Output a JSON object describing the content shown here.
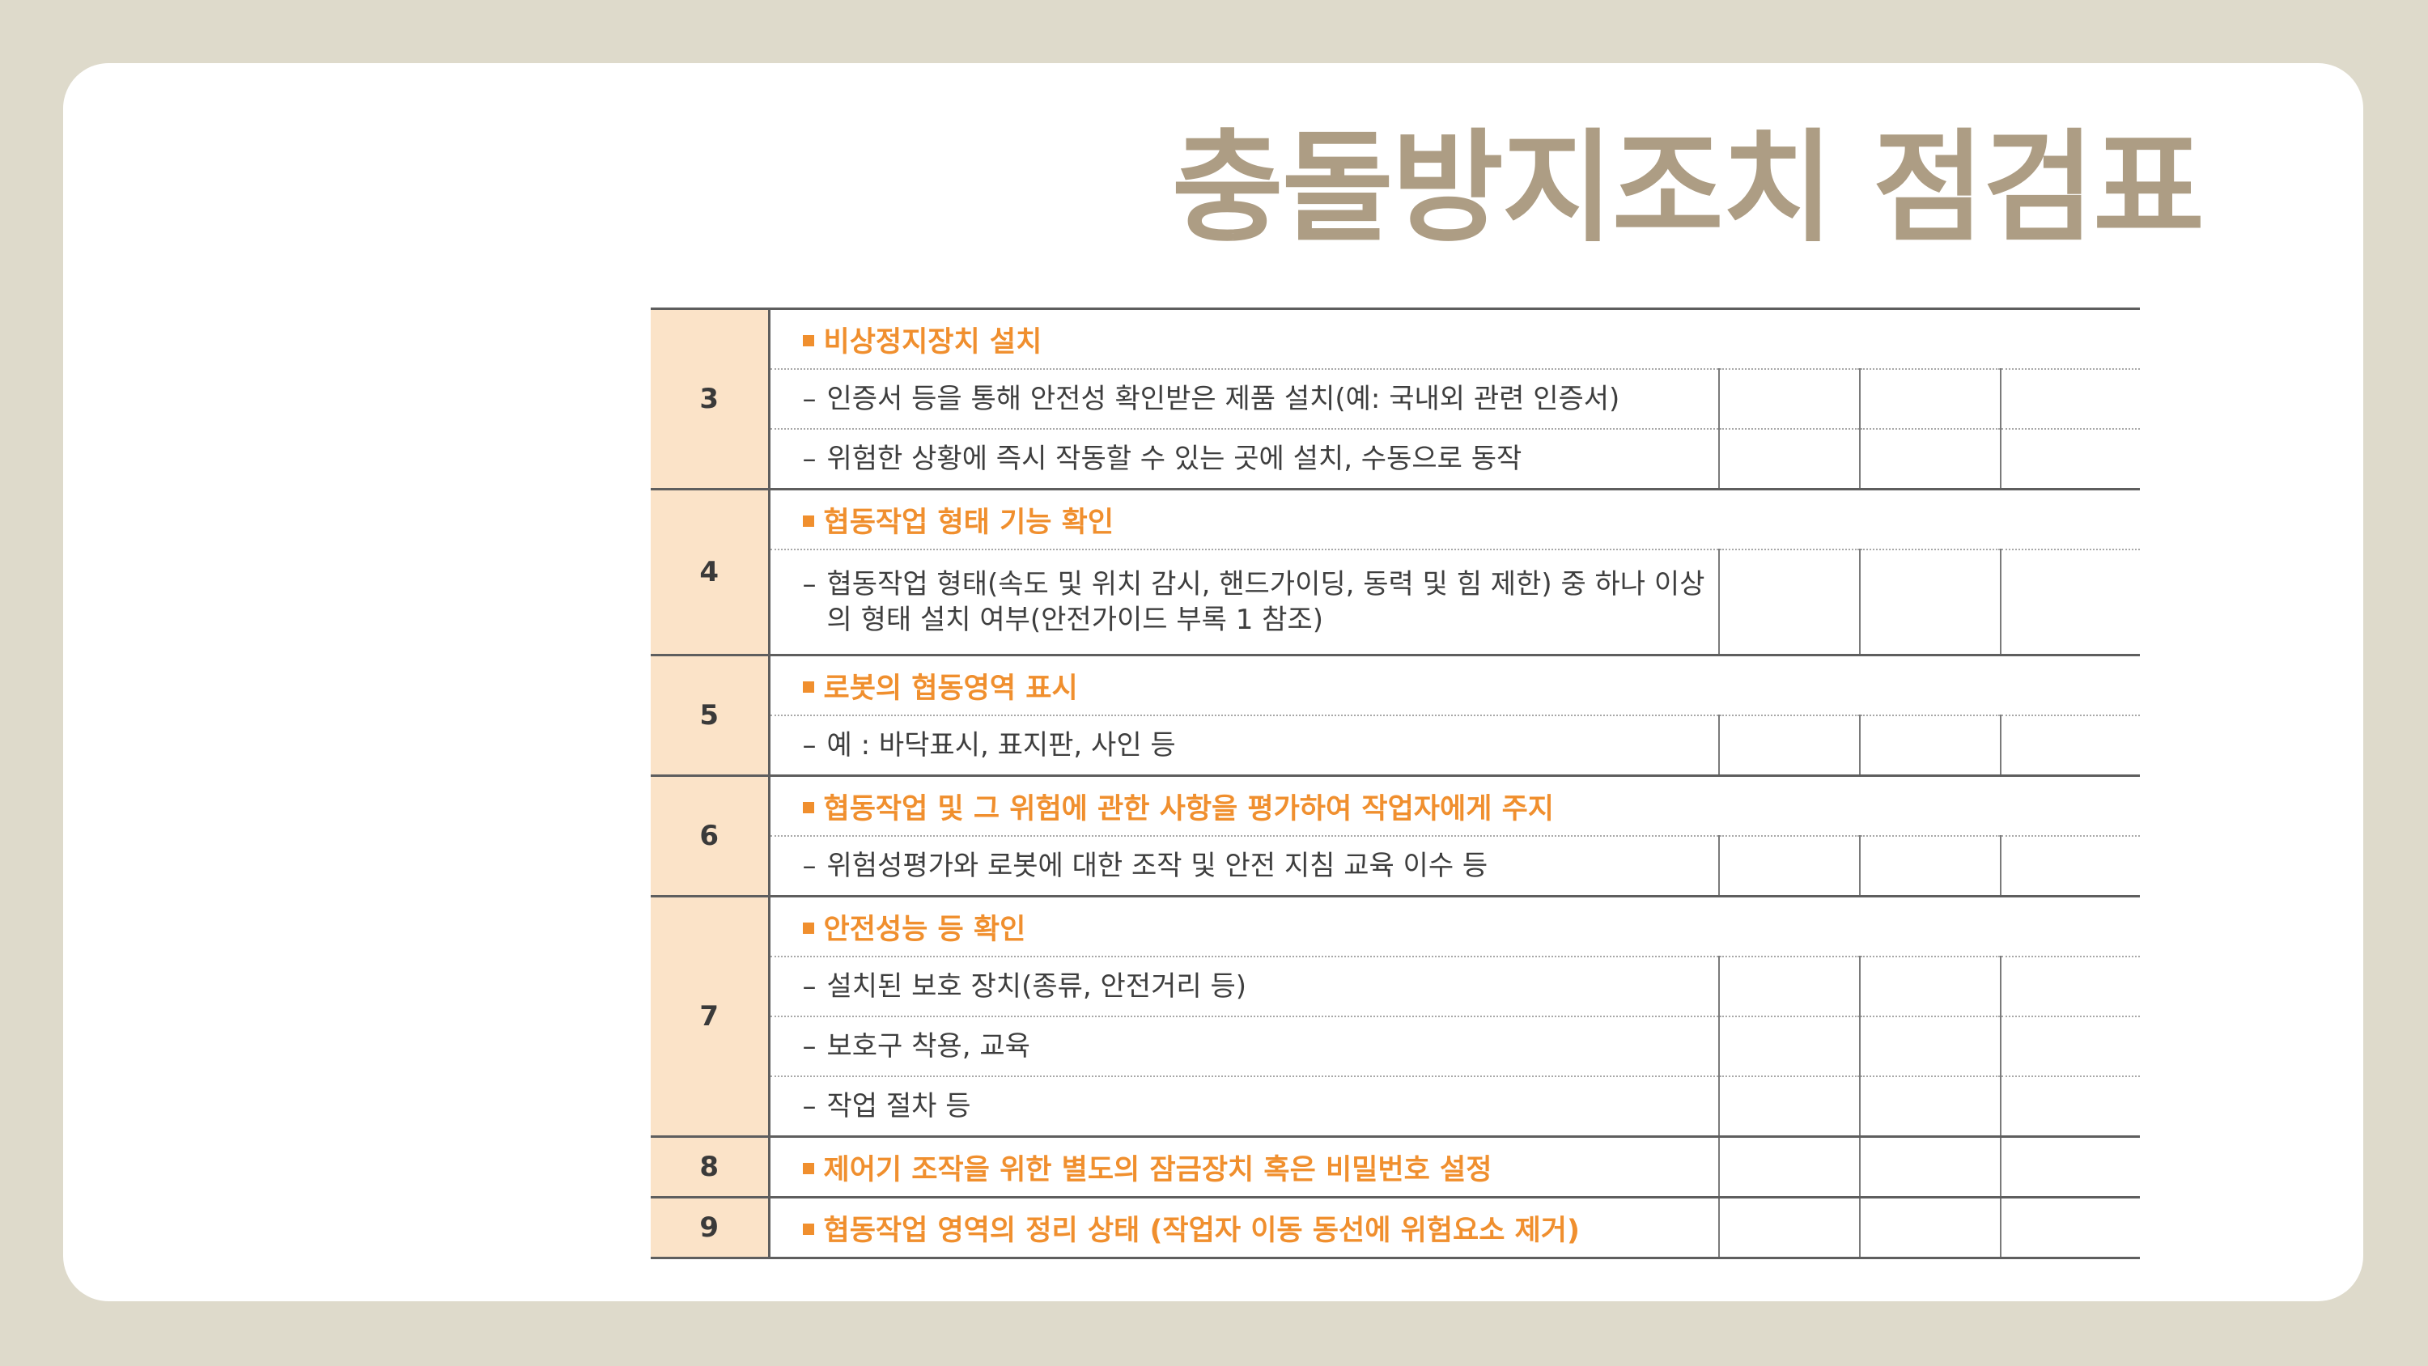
{
  "page": {
    "title": "충돌방지조치 점검표",
    "title_color": "#ad9d84",
    "accent_color": "#f08f2e",
    "number_cell_color": "#fbe3c8",
    "background_color": "#dedacb"
  },
  "table": {
    "groups": [
      {
        "number": "3",
        "heading": "비상정지장치 설치",
        "items": [
          "인증서 등을 통해 안전성 확인받은 제품 설치(예: 국내외 관련 인증서)",
          "위험한 상황에 즉시 작동할 수 있는 곳에 설치, 수동으로 동작"
        ]
      },
      {
        "number": "4",
        "heading": "협동작업 형태 기능 확인",
        "items": [
          "협동작업 형태(속도 및 위치 감시, 핸드가이딩, 동력 및 힘 제한) 중 하나 이상의 형태 설치 여부(안전가이드 부록 1 참조)"
        ]
      },
      {
        "number": "5",
        "heading": "로봇의 협동영역 표시",
        "items": [
          "예 : 바닥표시, 표지판, 사인 등"
        ]
      },
      {
        "number": "6",
        "heading": "협동작업 및 그 위험에 관한 사항을 평가하여 작업자에게 주지",
        "items": [
          "위험성평가와 로봇에 대한 조작 및 안전 지침 교육 이수 등"
        ]
      },
      {
        "number": "7",
        "heading": "안전성능 등 확인",
        "items": [
          "설치된 보호 장치(종류, 안전거리 등)",
          "보호구 착용, 교육",
          "작업 절차 등"
        ]
      },
      {
        "number": "8",
        "heading": "제어기 조작을 위한 별도의 잠금장치 혹은 비밀번호 설정",
        "items": []
      },
      {
        "number": "9",
        "heading": "협동작업 영역의 정리 상태 (작업자 이동 동선에 위험요소 제거)",
        "items": []
      }
    ]
  }
}
